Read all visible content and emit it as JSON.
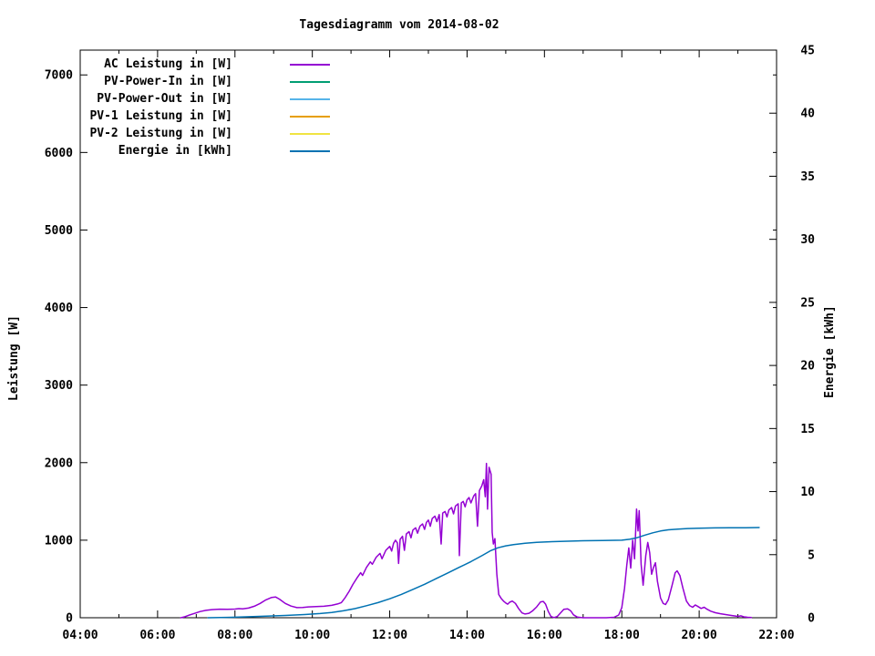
{
  "title": "Tagesdiagramm vom 2014-08-02",
  "chart_data": {
    "type": "line",
    "title": "Tagesdiagramm vom 2014-08-02",
    "background": "#ffffff",
    "border_color": "#000000",
    "grid": false,
    "legend_position": "top-left-inside",
    "x_axis": {
      "range_hours": [
        4,
        22
      ],
      "minor_tick_interval_hours": 1,
      "labeled_tick_interval_hours": 2,
      "tick_labels": [
        "04:00",
        "06:00",
        "08:00",
        "10:00",
        "12:00",
        "14:00",
        "16:00",
        "18:00",
        "20:00",
        "22:00"
      ]
    },
    "left_axis": {
      "label": "Leistung [W]",
      "ticks": [
        0,
        1000,
        2000,
        3000,
        4000,
        5000,
        6000,
        7000
      ],
      "range": [
        0,
        7320
      ]
    },
    "right_axis": {
      "label": "Energie [kWh]",
      "ticks": [
        0,
        5,
        10,
        15,
        20,
        25,
        30,
        35,
        40,
        45
      ],
      "range": [
        0,
        45
      ]
    },
    "legend": [
      {
        "label": "AC Leistung in [W]",
        "color": "#9400d3"
      },
      {
        "label": "PV-Power-In in [W]",
        "color": "#009e73"
      },
      {
        "label": "PV-Power-Out in [W]",
        "color": "#56b4e9"
      },
      {
        "label": "PV-1 Leistung in [W]",
        "color": "#e69f00"
      },
      {
        "label": "PV-2 Leistung in [W]",
        "color": "#f0e442"
      },
      {
        "label": "Energie in [kWh]",
        "color": "#0072b2"
      }
    ],
    "series": [
      {
        "name": "AC Leistung in [W]",
        "color": "#9400d3",
        "axis": "left",
        "points": [
          [
            6.6,
            0
          ],
          [
            6.7,
            12
          ],
          [
            6.8,
            30
          ],
          [
            6.95,
            55
          ],
          [
            7.1,
            80
          ],
          [
            7.25,
            95
          ],
          [
            7.4,
            105
          ],
          [
            7.6,
            110
          ],
          [
            7.8,
            108
          ],
          [
            8.0,
            112
          ],
          [
            8.1,
            118
          ],
          [
            8.2,
            115
          ],
          [
            8.35,
            125
          ],
          [
            8.5,
            148
          ],
          [
            8.65,
            185
          ],
          [
            8.8,
            230
          ],
          [
            8.95,
            262
          ],
          [
            9.05,
            268
          ],
          [
            9.15,
            240
          ],
          [
            9.3,
            185
          ],
          [
            9.45,
            150
          ],
          [
            9.6,
            130
          ],
          [
            9.75,
            133
          ],
          [
            9.9,
            140
          ],
          [
            10.1,
            143
          ],
          [
            10.3,
            148
          ],
          [
            10.5,
            160
          ],
          [
            10.65,
            178
          ],
          [
            10.75,
            195
          ],
          [
            10.85,
            260
          ],
          [
            10.95,
            340
          ],
          [
            11.05,
            430
          ],
          [
            11.15,
            510
          ],
          [
            11.25,
            580
          ],
          [
            11.3,
            545
          ],
          [
            11.4,
            650
          ],
          [
            11.5,
            720
          ],
          [
            11.55,
            690
          ],
          [
            11.65,
            780
          ],
          [
            11.75,
            830
          ],
          [
            11.8,
            760
          ],
          [
            11.9,
            870
          ],
          [
            12.0,
            920
          ],
          [
            12.05,
            860
          ],
          [
            12.1,
            960
          ],
          [
            12.15,
            1000
          ],
          [
            12.2,
            965
          ],
          [
            12.23,
            700
          ],
          [
            12.27,
            1010
          ],
          [
            12.33,
            1050
          ],
          [
            12.38,
            870
          ],
          [
            12.43,
            1080
          ],
          [
            12.5,
            1110
          ],
          [
            12.55,
            1030
          ],
          [
            12.6,
            1130
          ],
          [
            12.67,
            1160
          ],
          [
            12.72,
            1090
          ],
          [
            12.78,
            1180
          ],
          [
            12.85,
            1210
          ],
          [
            12.9,
            1140
          ],
          [
            12.95,
            1230
          ],
          [
            13.0,
            1260
          ],
          [
            13.05,
            1180
          ],
          [
            13.1,
            1280
          ],
          [
            13.17,
            1310
          ],
          [
            13.22,
            1240
          ],
          [
            13.28,
            1330
          ],
          [
            13.33,
            950
          ],
          [
            13.37,
            1350
          ],
          [
            13.43,
            1370
          ],
          [
            13.48,
            1300
          ],
          [
            13.53,
            1390
          ],
          [
            13.6,
            1420
          ],
          [
            13.65,
            1340
          ],
          [
            13.7,
            1440
          ],
          [
            13.77,
            1470
          ],
          [
            13.8,
            800
          ],
          [
            13.85,
            1480
          ],
          [
            13.9,
            1500
          ],
          [
            13.95,
            1430
          ],
          [
            14.0,
            1520
          ],
          [
            14.05,
            1550
          ],
          [
            14.1,
            1480
          ],
          [
            14.17,
            1570
          ],
          [
            14.22,
            1600
          ],
          [
            14.27,
            1180
          ],
          [
            14.32,
            1640
          ],
          [
            14.38,
            1700
          ],
          [
            14.43,
            1780
          ],
          [
            14.47,
            1560
          ],
          [
            14.5,
            1990
          ],
          [
            14.53,
            1400
          ],
          [
            14.57,
            1940
          ],
          [
            14.62,
            1850
          ],
          [
            14.65,
            1100
          ],
          [
            14.68,
            950
          ],
          [
            14.72,
            1020
          ],
          [
            14.77,
            560
          ],
          [
            14.82,
            300
          ],
          [
            14.88,
            250
          ],
          [
            14.95,
            210
          ],
          [
            15.0,
            190
          ],
          [
            15.05,
            175
          ],
          [
            15.1,
            200
          ],
          [
            15.17,
            215
          ],
          [
            15.25,
            185
          ],
          [
            15.33,
            120
          ],
          [
            15.42,
            62
          ],
          [
            15.5,
            48
          ],
          [
            15.6,
            58
          ],
          [
            15.7,
            92
          ],
          [
            15.8,
            140
          ],
          [
            15.9,
            205
          ],
          [
            15.97,
            210
          ],
          [
            16.03,
            175
          ],
          [
            16.1,
            80
          ],
          [
            16.17,
            15
          ],
          [
            16.25,
            2
          ],
          [
            16.33,
            15
          ],
          [
            16.42,
            65
          ],
          [
            16.5,
            108
          ],
          [
            16.6,
            115
          ],
          [
            16.68,
            88
          ],
          [
            16.75,
            38
          ],
          [
            16.85,
            8
          ],
          [
            17.0,
            0
          ],
          [
            17.3,
            0
          ],
          [
            17.6,
            0
          ],
          [
            17.8,
            6
          ],
          [
            17.92,
            35
          ],
          [
            18.0,
            130
          ],
          [
            18.07,
            380
          ],
          [
            18.13,
            680
          ],
          [
            18.18,
            900
          ],
          [
            18.23,
            640
          ],
          [
            18.28,
            1000
          ],
          [
            18.33,
            760
          ],
          [
            18.38,
            1400
          ],
          [
            18.42,
            1120
          ],
          [
            18.45,
            1380
          ],
          [
            18.5,
            690
          ],
          [
            18.55,
            420
          ],
          [
            18.62,
            800
          ],
          [
            18.67,
            970
          ],
          [
            18.72,
            840
          ],
          [
            18.77,
            560
          ],
          [
            18.82,
            650
          ],
          [
            18.87,
            710
          ],
          [
            18.92,
            470
          ],
          [
            19.0,
            255
          ],
          [
            19.07,
            185
          ],
          [
            19.13,
            170
          ],
          [
            19.2,
            230
          ],
          [
            19.3,
            420
          ],
          [
            19.38,
            580
          ],
          [
            19.43,
            605
          ],
          [
            19.5,
            545
          ],
          [
            19.58,
            380
          ],
          [
            19.67,
            215
          ],
          [
            19.75,
            158
          ],
          [
            19.83,
            135
          ],
          [
            19.9,
            165
          ],
          [
            19.97,
            145
          ],
          [
            20.05,
            120
          ],
          [
            20.13,
            135
          ],
          [
            20.2,
            110
          ],
          [
            20.3,
            85
          ],
          [
            20.42,
            65
          ],
          [
            20.55,
            52
          ],
          [
            20.7,
            40
          ],
          [
            20.85,
            28
          ],
          [
            21.0,
            18
          ],
          [
            21.08,
            25
          ],
          [
            21.15,
            12
          ],
          [
            21.25,
            6
          ],
          [
            21.35,
            3
          ]
        ]
      },
      {
        "name": "Energie in [kWh]",
        "color": "#0072b2",
        "axis": "right",
        "points": [
          [
            7.3,
            0
          ],
          [
            7.8,
            0.03
          ],
          [
            8.3,
            0.07
          ],
          [
            8.8,
            0.12
          ],
          [
            9.3,
            0.18
          ],
          [
            9.8,
            0.25
          ],
          [
            10.2,
            0.33
          ],
          [
            10.5,
            0.42
          ],
          [
            10.8,
            0.55
          ],
          [
            11.1,
            0.72
          ],
          [
            11.4,
            0.95
          ],
          [
            11.7,
            1.2
          ],
          [
            12.0,
            1.5
          ],
          [
            12.3,
            1.85
          ],
          [
            12.6,
            2.25
          ],
          [
            12.9,
            2.65
          ],
          [
            13.2,
            3.1
          ],
          [
            13.5,
            3.55
          ],
          [
            13.8,
            4.0
          ],
          [
            14.1,
            4.45
          ],
          [
            14.4,
            4.95
          ],
          [
            14.6,
            5.3
          ],
          [
            14.8,
            5.55
          ],
          [
            15.0,
            5.7
          ],
          [
            15.2,
            5.8
          ],
          [
            15.5,
            5.9
          ],
          [
            15.8,
            5.97
          ],
          [
            16.2,
            6.03
          ],
          [
            16.6,
            6.07
          ],
          [
            17.0,
            6.1
          ],
          [
            17.5,
            6.12
          ],
          [
            18.0,
            6.15
          ],
          [
            18.2,
            6.22
          ],
          [
            18.4,
            6.35
          ],
          [
            18.6,
            6.55
          ],
          [
            18.8,
            6.73
          ],
          [
            19.0,
            6.88
          ],
          [
            19.2,
            6.97
          ],
          [
            19.45,
            7.03
          ],
          [
            19.7,
            7.07
          ],
          [
            20.0,
            7.1
          ],
          [
            20.4,
            7.12
          ],
          [
            20.8,
            7.13
          ],
          [
            21.2,
            7.14
          ],
          [
            21.55,
            7.15
          ]
        ]
      }
    ]
  }
}
